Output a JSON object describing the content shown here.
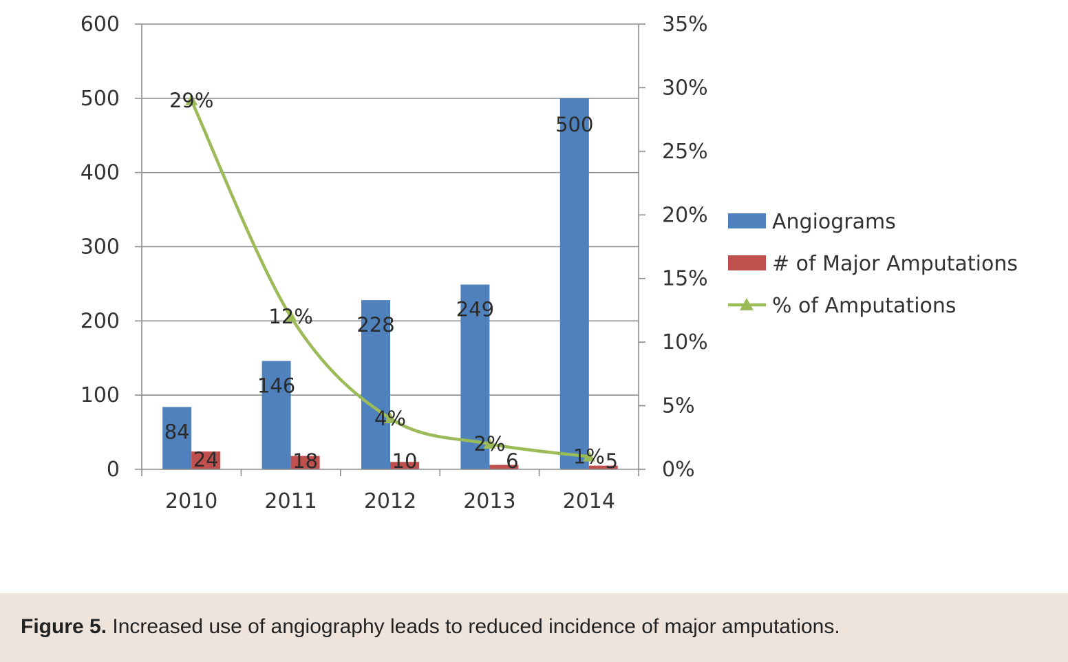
{
  "chart_data": {
    "type": "bar",
    "categories": [
      "2010",
      "2011",
      "2012",
      "2013",
      "2014"
    ],
    "series": [
      {
        "name": "Angiograms",
        "kind": "bar",
        "axis": "left",
        "color": "#4f81bd",
        "values": [
          84,
          146,
          228,
          249,
          500
        ],
        "labels": [
          "84",
          "146",
          "228",
          "249",
          "500"
        ]
      },
      {
        "name": "# of Major Amputations",
        "kind": "bar",
        "axis": "left",
        "color": "#c0504d",
        "values": [
          24,
          18,
          10,
          6,
          5
        ],
        "labels": [
          "24",
          "18",
          "10",
          "6",
          "5"
        ]
      },
      {
        "name": "% of Amputations",
        "kind": "line",
        "axis": "right",
        "color": "#9bbb59",
        "values": [
          29,
          12,
          4,
          2,
          1
        ],
        "labels": [
          "29%",
          "12%",
          "4%",
          "2%",
          "1%"
        ]
      }
    ],
    "y_left": {
      "min": 0,
      "max": 600,
      "ticks": [
        "0",
        "100",
        "200",
        "300",
        "400",
        "500",
        "600"
      ]
    },
    "y_right": {
      "min": 0,
      "max": 35,
      "ticks": [
        "0%",
        "5%",
        "10%",
        "15%",
        "20%",
        "25%",
        "30%",
        "35%"
      ]
    },
    "grid": true,
    "legend_position": "right"
  },
  "caption": {
    "label": "Figure 5.",
    "text": " Increased use of angiography leads to reduced incidence of major amputations."
  }
}
